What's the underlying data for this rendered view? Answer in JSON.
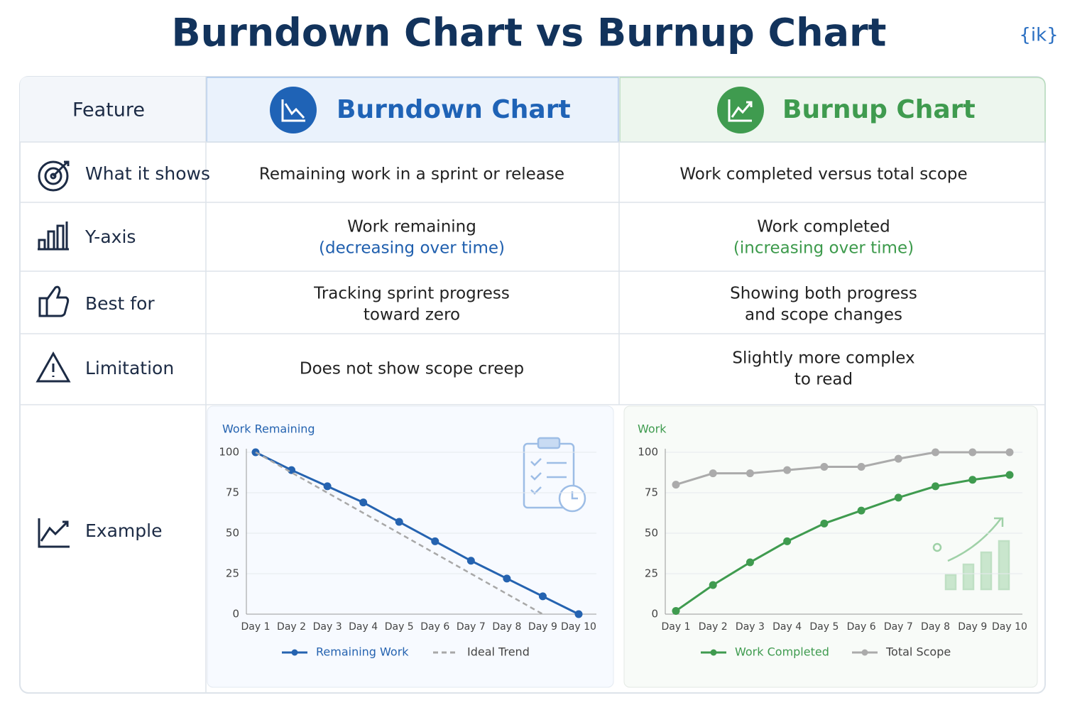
{
  "header": {
    "title": "Burndown Chart vs Burnup Chart",
    "logo": "{ik}"
  },
  "table": {
    "columns": [
      "Feature",
      "Burndown Chart",
      "Burnup Chart"
    ],
    "rows": [
      {
        "feature": "What it shows",
        "cells": [
          [
            "Remaining work in a sprint or release"
          ],
          [
            "Work completed versus total scope"
          ]
        ]
      },
      {
        "feature": "Y-axis",
        "cells": [
          [
            "Work remaining",
            "(decreasing over time)"
          ],
          [
            "Work completed",
            "(increasing over time)"
          ]
        ]
      },
      {
        "feature": "Best for",
        "cells": [
          [
            "Tracking sprint progress",
            "toward zero"
          ],
          [
            "Showing both progress",
            "and scope changes"
          ]
        ]
      },
      {
        "feature": "Limitation",
        "cells": [
          [
            "Does not show scope creep"
          ],
          [
            "Slightly more complex",
            "to read"
          ]
        ]
      },
      {
        "feature": "Example",
        "cells": []
      }
    ]
  },
  "chart_data": [
    {
      "type": "line",
      "y_label": "Work Remaining",
      "categories": [
        "Day 1",
        "Day 2",
        "Day 3",
        "Day 4",
        "Day 5",
        "Day 6",
        "Day 7",
        "Day 8",
        "Day 9",
        "Day 10"
      ],
      "series": [
        {
          "name": "Remaining Work",
          "color": "#2563b0",
          "values": [
            100,
            89,
            79,
            69,
            57,
            45,
            33,
            22,
            11,
            0
          ],
          "markers": true
        },
        {
          "name": "Ideal Trend",
          "color": "#a8a8a8",
          "values": [
            100,
            87.5,
            75,
            62.5,
            50,
            37.5,
            25,
            12.5,
            0,
            null
          ],
          "dashed": true
        }
      ],
      "ylim": [
        0,
        100
      ],
      "yticks": [
        0,
        25,
        50,
        75,
        100
      ],
      "grid": true
    },
    {
      "type": "line",
      "y_label": "Work",
      "categories": [
        "Day 1",
        "Day 2",
        "Day 3",
        "Day 4",
        "Day 5",
        "Day 6",
        "Day 7",
        "Day 8",
        "Day 9",
        "Day 10"
      ],
      "series": [
        {
          "name": "Work Completed",
          "color": "#3f9b4f",
          "values": [
            2,
            18,
            32,
            45,
            56,
            64,
            72,
            79,
            83,
            86
          ],
          "markers": true
        },
        {
          "name": "Total Scope",
          "color": "#ababab",
          "values": [
            80,
            87,
            87,
            89,
            91,
            91,
            96,
            100,
            100,
            100
          ],
          "markers": true
        }
      ],
      "ylim": [
        0,
        100
      ],
      "yticks": [
        0,
        25,
        50,
        75,
        100
      ],
      "grid": true
    }
  ]
}
